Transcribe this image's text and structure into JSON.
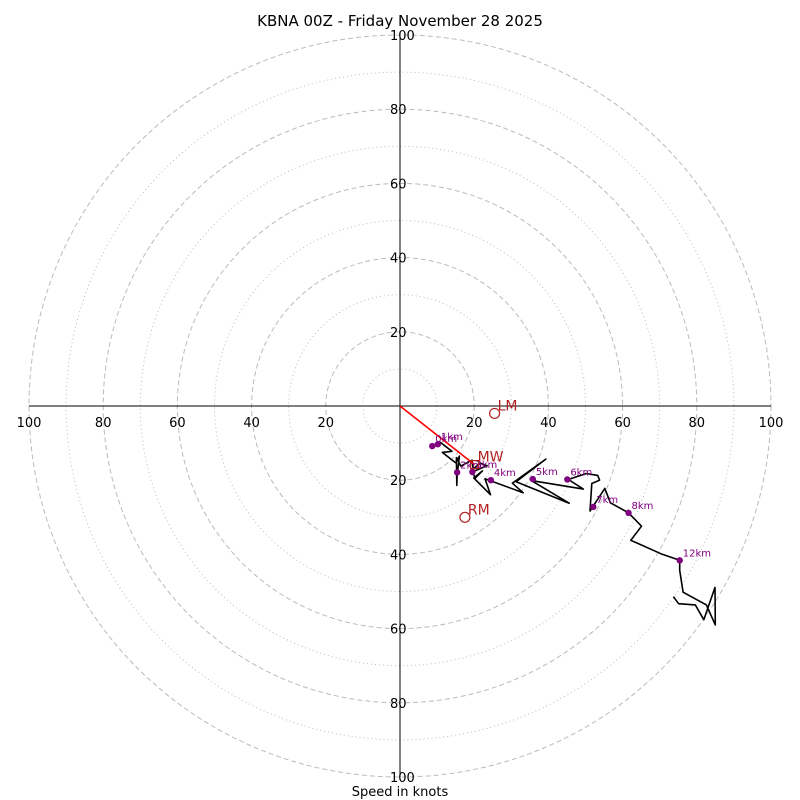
{
  "chart_data": {
    "type": "line",
    "title": "KBNA 00Z - Friday November 28 2025",
    "xlabel": "Speed in knots",
    "ylabel": "",
    "xlim": [
      -100,
      100
    ],
    "ylim": [
      -100,
      100
    ],
    "rings_major": [
      20,
      40,
      60,
      80,
      100
    ],
    "rings_minor": [
      10,
      30,
      50,
      70,
      90
    ],
    "x_ticks": [
      {
        "value": -100,
        "label": "100"
      },
      {
        "value": -80,
        "label": "80"
      },
      {
        "value": -60,
        "label": "60"
      },
      {
        "value": -40,
        "label": "40"
      },
      {
        "value": -20,
        "label": "20"
      },
      {
        "value": 20,
        "label": "20"
      },
      {
        "value": 40,
        "label": "40"
      },
      {
        "value": 60,
        "label": "60"
      },
      {
        "value": 80,
        "label": "80"
      },
      {
        "value": 100,
        "label": "100"
      }
    ],
    "y_ticks": [
      {
        "value": 100,
        "label": "100"
      },
      {
        "value": 80,
        "label": "80"
      },
      {
        "value": 60,
        "label": "60"
      },
      {
        "value": 40,
        "label": "40"
      },
      {
        "value": 20,
        "label": "20"
      },
      {
        "value": -20,
        "label": "20"
      },
      {
        "value": -40,
        "label": "40"
      },
      {
        "value": -60,
        "label": "60"
      },
      {
        "value": -80,
        "label": "80"
      },
      {
        "value": -100,
        "label": "100"
      }
    ],
    "series": [
      {
        "name": "hodograph",
        "color": "#000000",
        "points": [
          [
            8.7,
            -10.8
          ],
          [
            10.9,
            -9.8
          ],
          [
            14.0,
            -12.2
          ],
          [
            11.4,
            -12.5
          ],
          [
            15.0,
            -15.3
          ],
          [
            16.0,
            -13.5
          ],
          [
            15.4,
            -18.8
          ],
          [
            15.3,
            -21.4
          ],
          [
            15.2,
            -13.9
          ],
          [
            16.4,
            -16.2
          ],
          [
            19.4,
            -14.6
          ],
          [
            19.7,
            -17.0
          ],
          [
            21.6,
            -15.4
          ],
          [
            23.5,
            -16.1
          ],
          [
            19.5,
            -17.8
          ],
          [
            20.3,
            -19.4
          ],
          [
            22.2,
            -17.5
          ],
          [
            19.9,
            -19.4
          ],
          [
            24.4,
            -23.9
          ],
          [
            22.9,
            -19.6
          ],
          [
            33.2,
            -23.4
          ],
          [
            30.3,
            -20.8
          ],
          [
            39.3,
            -14.3
          ],
          [
            31.3,
            -20.4
          ],
          [
            45.6,
            -26.2
          ],
          [
            35.4,
            -20.1
          ],
          [
            49.4,
            -22.4
          ],
          [
            45.4,
            -19.8
          ],
          [
            50.2,
            -18.2
          ],
          [
            53.3,
            -18.7
          ],
          [
            53.8,
            -20.0
          ],
          [
            51.7,
            -20.9
          ],
          [
            51.2,
            -28.3
          ],
          [
            55.2,
            -22.2
          ],
          [
            56.7,
            -26.1
          ],
          [
            61.6,
            -28.8
          ],
          [
            65.1,
            -32.4
          ],
          [
            62.2,
            -36.2
          ],
          [
            70.3,
            -39.8
          ],
          [
            75.4,
            -41.6
          ],
          [
            75.4,
            -44.3
          ],
          [
            76.3,
            -50.2
          ],
          [
            82.6,
            -53.6
          ],
          [
            85.0,
            -59.0
          ],
          [
            84.9,
            -48.9
          ],
          [
            81.9,
            -57.6
          ],
          [
            79.6,
            -53.6
          ],
          [
            75.1,
            -53.3
          ],
          [
            73.7,
            -51.4
          ]
        ]
      },
      {
        "name": "mean-wind-vector",
        "color": "#ff0000",
        "points": [
          [
            0,
            0
          ],
          [
            20.1,
            -15.8
          ]
        ]
      }
    ],
    "height_markers": [
      {
        "label": "0km",
        "x": 8.7,
        "y": -10.8
      },
      {
        "label": "1km",
        "x": 10.2,
        "y": -10.3
      },
      {
        "label": "2km",
        "x": 15.4,
        "y": -17.9
      },
      {
        "label": "3km",
        "x": 19.5,
        "y": -17.8
      },
      {
        "label": "4km",
        "x": 24.5,
        "y": -20.0
      },
      {
        "label": "5km",
        "x": 35.8,
        "y": -19.7
      },
      {
        "label": "6km",
        "x": 45.1,
        "y": -19.8
      },
      {
        "label": "7km",
        "x": 52.1,
        "y": -27.2
      },
      {
        "label": "8km",
        "x": 61.6,
        "y": -28.8
      },
      {
        "label": "12km",
        "x": 75.4,
        "y": -41.6
      }
    ],
    "motion_markers": [
      {
        "label": "LM",
        "x": 25.5,
        "y": -2.0,
        "shape": "circle"
      },
      {
        "label": "MW",
        "x": 20.1,
        "y": -15.8,
        "shape": "square"
      },
      {
        "label": "RM",
        "x": 17.5,
        "y": -30.0,
        "shape": "circle"
      }
    ],
    "colors": {
      "height_marker": "#800080",
      "motion_marker": "#b22222",
      "ring": "#bbbbbb",
      "axis": "#000000"
    }
  }
}
